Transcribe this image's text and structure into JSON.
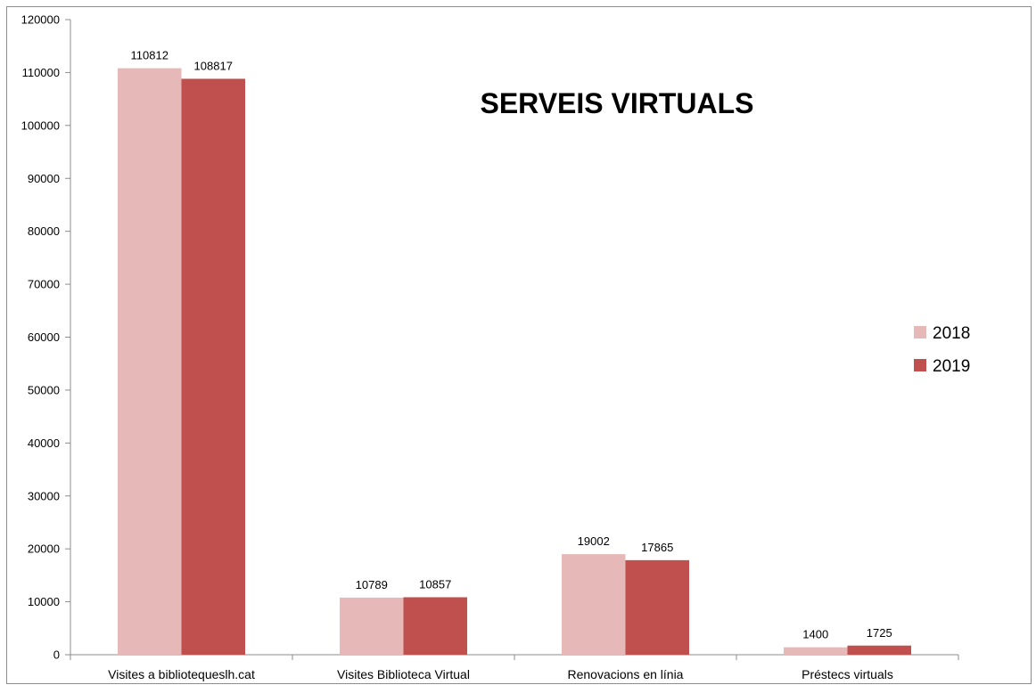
{
  "chart_data": {
    "type": "bar",
    "title": "SERVEIS VIRTUALS",
    "categories": [
      "Visites a bibliotequeslh.cat",
      "Visites Biblioteca Virtual",
      "Renovacions en línia",
      "Préstecs virtuals"
    ],
    "series": [
      {
        "name": "2018",
        "values": [
          110812,
          10789,
          19002,
          1400
        ],
        "color": "#e6b9b8"
      },
      {
        "name": "2019",
        "values": [
          108817,
          10857,
          17865,
          1725
        ],
        "color": "#c0504d"
      }
    ],
    "ylim": [
      0,
      120000
    ],
    "yticks": [
      "0",
      "10000",
      "20000",
      "30000",
      "40000",
      "50000",
      "60000",
      "70000",
      "80000",
      "90000",
      "100000",
      "110000",
      "120000"
    ],
    "xlabel": "",
    "ylabel": "",
    "grid": false,
    "legend_position": "right"
  }
}
